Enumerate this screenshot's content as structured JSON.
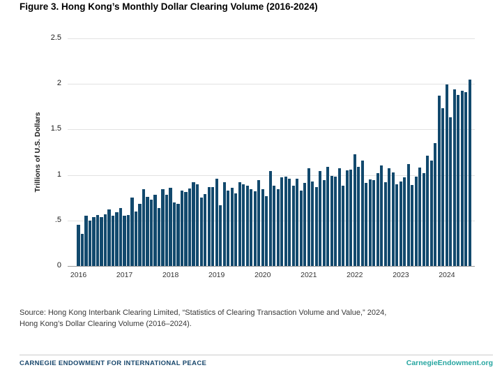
{
  "title": "Figure 3. Hong Kong’s Monthly Dollar Clearing Volume (2016-2024)",
  "chart_data": {
    "type": "bar",
    "title": "Figure 3. Hong Kong’s Monthly Dollar Clearing Volume (2016-2024)",
    "ylabel": "Trillions of U.S. Dollars",
    "xlabel": "",
    "ylim": [
      0,
      2.5
    ],
    "grid": true,
    "bar_color": "#12496d",
    "yticks": [
      0,
      0.5,
      1,
      1.5,
      2,
      2.5
    ],
    "ytick_labels": [
      "0",
      ".5",
      "1",
      "1.5",
      "2",
      "2.5"
    ],
    "year_labels": [
      "2016",
      "2017",
      "2018",
      "2019",
      "2020",
      "2021",
      "2022",
      "2023",
      "2024"
    ],
    "x_unit": "month",
    "x_range": "Jan 2016 – Jul 2024",
    "series": [
      {
        "name": "Monthly U.S. dollar clearing volume (trillions of U.S. dollars)",
        "values": [
          0.45,
          0.35,
          0.55,
          0.5,
          0.54,
          0.56,
          0.54,
          0.57,
          0.62,
          0.55,
          0.59,
          0.64,
          0.55,
          0.56,
          0.75,
          0.6,
          0.68,
          0.84,
          0.76,
          0.73,
          0.78,
          0.64,
          0.84,
          0.78,
          0.86,
          0.7,
          0.68,
          0.83,
          0.81,
          0.85,
          0.92,
          0.9,
          0.75,
          0.79,
          0.87,
          0.87,
          0.96,
          0.67,
          0.92,
          0.83,
          0.86,
          0.8,
          0.92,
          0.9,
          0.88,
          0.84,
          0.82,
          0.94,
          0.84,
          0.77,
          1.04,
          0.88,
          0.84,
          0.97,
          0.98,
          0.96,
          0.88,
          0.96,
          0.83,
          0.91,
          1.07,
          0.93,
          0.87,
          1.04,
          0.94,
          1.09,
          0.99,
          0.98,
          1.07,
          0.88,
          1.05,
          1.06,
          1.23,
          1.09,
          1.16,
          0.91,
          0.95,
          0.94,
          1.02,
          1.1,
          0.92,
          1.07,
          1.03,
          0.9,
          0.93,
          0.97,
          1.12,
          0.89,
          0.98,
          1.08,
          1.02,
          1.21,
          1.16,
          1.35,
          1.87,
          1.73,
          1.99,
          1.63,
          1.94,
          1.88,
          1.92,
          1.91,
          2.05
        ]
      }
    ]
  },
  "source": {
    "line1": "Source: Hong Kong Interbank Clearing Limited, “Statistics of Clearing Transaction Volume and Value,” 2024,",
    "line2": "Hong Kong’s Dollar Clearing Volume (2016–2024)."
  },
  "footer": {
    "left": "CARNEGIE ENDOWMENT FOR INTERNATIONAL PEACE",
    "right": "CarnegieEndowment.org",
    "left_color": "#17466b",
    "right_color": "#27a6a1"
  }
}
